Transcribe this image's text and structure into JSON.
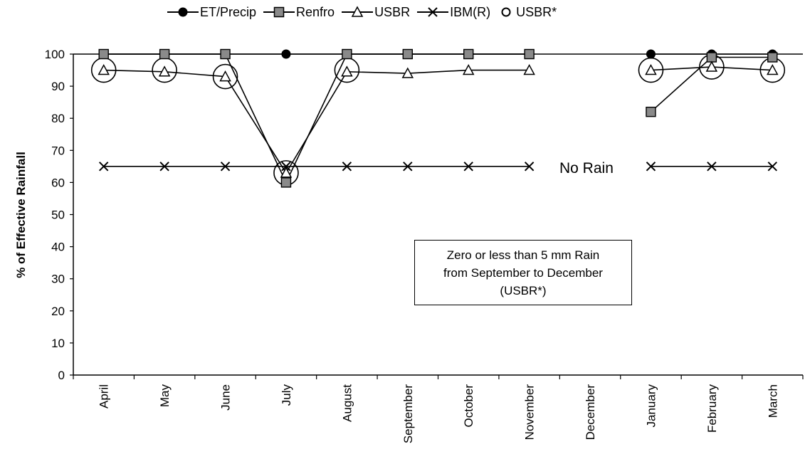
{
  "chart_data": {
    "type": "line",
    "title": "",
    "xlabel": "",
    "ylabel": "% of Effective Rainfall",
    "ylim": [
      0,
      100
    ],
    "yticks": [
      0,
      10,
      20,
      30,
      40,
      50,
      60,
      70,
      80,
      90,
      100
    ],
    "categories": [
      "April",
      "May",
      "June",
      "July",
      "August",
      "September",
      "October",
      "November",
      "December",
      "January",
      "February",
      "March"
    ],
    "grid": false,
    "legend_position": "top",
    "series": [
      {
        "name": "ET/Precip",
        "marker": "filled-circle",
        "values": [
          100,
          100,
          100,
          100,
          100,
          100,
          100,
          100,
          null,
          100,
          100,
          100
        ]
      },
      {
        "name": "Renfro",
        "marker": "shaded-square",
        "values": [
          100,
          100,
          100,
          60,
          100,
          100,
          100,
          100,
          null,
          82,
          99,
          99
        ]
      },
      {
        "name": "USBR",
        "marker": "open-triangle",
        "values": [
          95,
          94.5,
          93,
          63,
          94.5,
          94,
          95,
          95,
          null,
          95,
          96,
          95
        ]
      },
      {
        "name": "IBM(R)",
        "marker": "x",
        "values": [
          65,
          65,
          65,
          65,
          65,
          65,
          65,
          65,
          null,
          65,
          65,
          65
        ]
      },
      {
        "name": "USBR*",
        "marker": "large-open-circle",
        "values": [
          95,
          95,
          93,
          63,
          95,
          null,
          null,
          null,
          null,
          95,
          96,
          95
        ]
      }
    ],
    "annotations": {
      "no_rain": "No Rain",
      "note_lines": [
        "Zero or less than 5 mm Rain",
        "from September to December",
        "(USBR*)"
      ]
    }
  }
}
